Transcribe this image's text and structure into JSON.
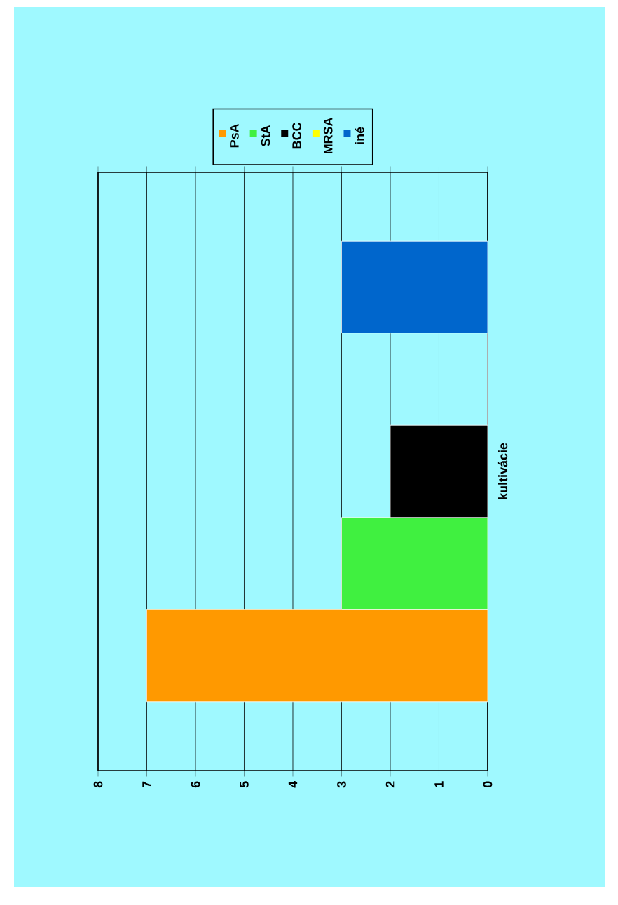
{
  "chart_data": {
    "type": "bar",
    "orientation": "horizontal",
    "categories": [
      "kultivácie"
    ],
    "series": [
      {
        "name": "PsA",
        "color": "#ff9900",
        "values": [
          7
        ]
      },
      {
        "name": "StA",
        "color": "#40f040",
        "values": [
          3
        ]
      },
      {
        "name": "BCC",
        "color": "#000000",
        "values": [
          2
        ]
      },
      {
        "name": "MRSA",
        "color": "#ffff00",
        "values": [
          0
        ]
      },
      {
        "name": "iné",
        "color": "#0066cc",
        "values": [
          3
        ]
      }
    ],
    "xlim": [
      8,
      0
    ],
    "xticks": [
      8,
      7,
      6,
      5,
      4,
      3,
      2,
      1,
      0
    ],
    "grid": "x",
    "legend": "top"
  }
}
